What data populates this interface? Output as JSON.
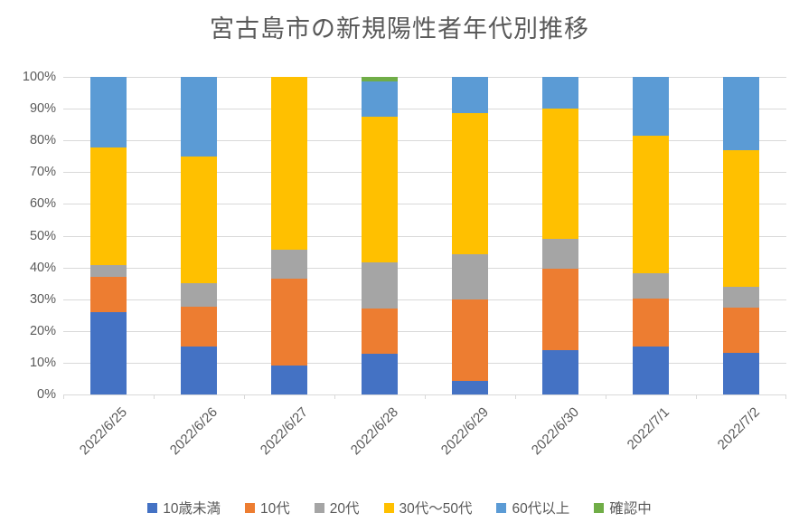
{
  "title": "宮古島市の新規陽性者年代別推移",
  "chart_data": {
    "type": "bar",
    "stacked": true,
    "percent_stacked": true,
    "title": "宮古島市の新規陽性者年代別推移",
    "categories": [
      "2022/6/25",
      "2022/6/26",
      "2022/6/27",
      "2022/6/28",
      "2022/6/29",
      "2022/6/30",
      "2022/7/1",
      "2022/7/2"
    ],
    "series": [
      {
        "name": "10歳未満",
        "color": "#4472C4",
        "values": [
          25.9,
          15.0,
          9.1,
          12.9,
          4.4,
          14.0,
          15.1,
          13.2
        ]
      },
      {
        "name": "10代",
        "color": "#ED7D31",
        "values": [
          11.1,
          12.5,
          27.3,
          14.3,
          25.6,
          25.6,
          15.1,
          14.2
        ]
      },
      {
        "name": "20代",
        "color": "#A5A5A5",
        "values": [
          3.7,
          7.5,
          9.1,
          14.3,
          14.1,
          9.3,
          7.9,
          6.6
        ]
      },
      {
        "name": "30代～50代",
        "color": "#FFC000",
        "values": [
          37.1,
          40.0,
          54.5,
          45.9,
          44.4,
          41.1,
          43.4,
          42.8
        ]
      },
      {
        "name": "60代以上",
        "color": "#5B9BD5",
        "values": [
          22.2,
          25.0,
          0.0,
          11.1,
          11.5,
          10.0,
          18.5,
          23.2
        ]
      },
      {
        "name": "確認中",
        "color": "#70AD47",
        "values": [
          0.0,
          0.0,
          0.0,
          1.5,
          0.0,
          0.0,
          0.0,
          0.0
        ]
      }
    ],
    "ylim": [
      0,
      100
    ],
    "yticks": [
      "0%",
      "10%",
      "20%",
      "30%",
      "40%",
      "50%",
      "60%",
      "70%",
      "80%",
      "90%",
      "100%"
    ],
    "grid": true,
    "legend_position": "bottom",
    "colors": {
      "text": "#595959",
      "gridline": "#D9D9D9",
      "axis": "#D9D9D9",
      "background": "#FFFFFF"
    }
  }
}
